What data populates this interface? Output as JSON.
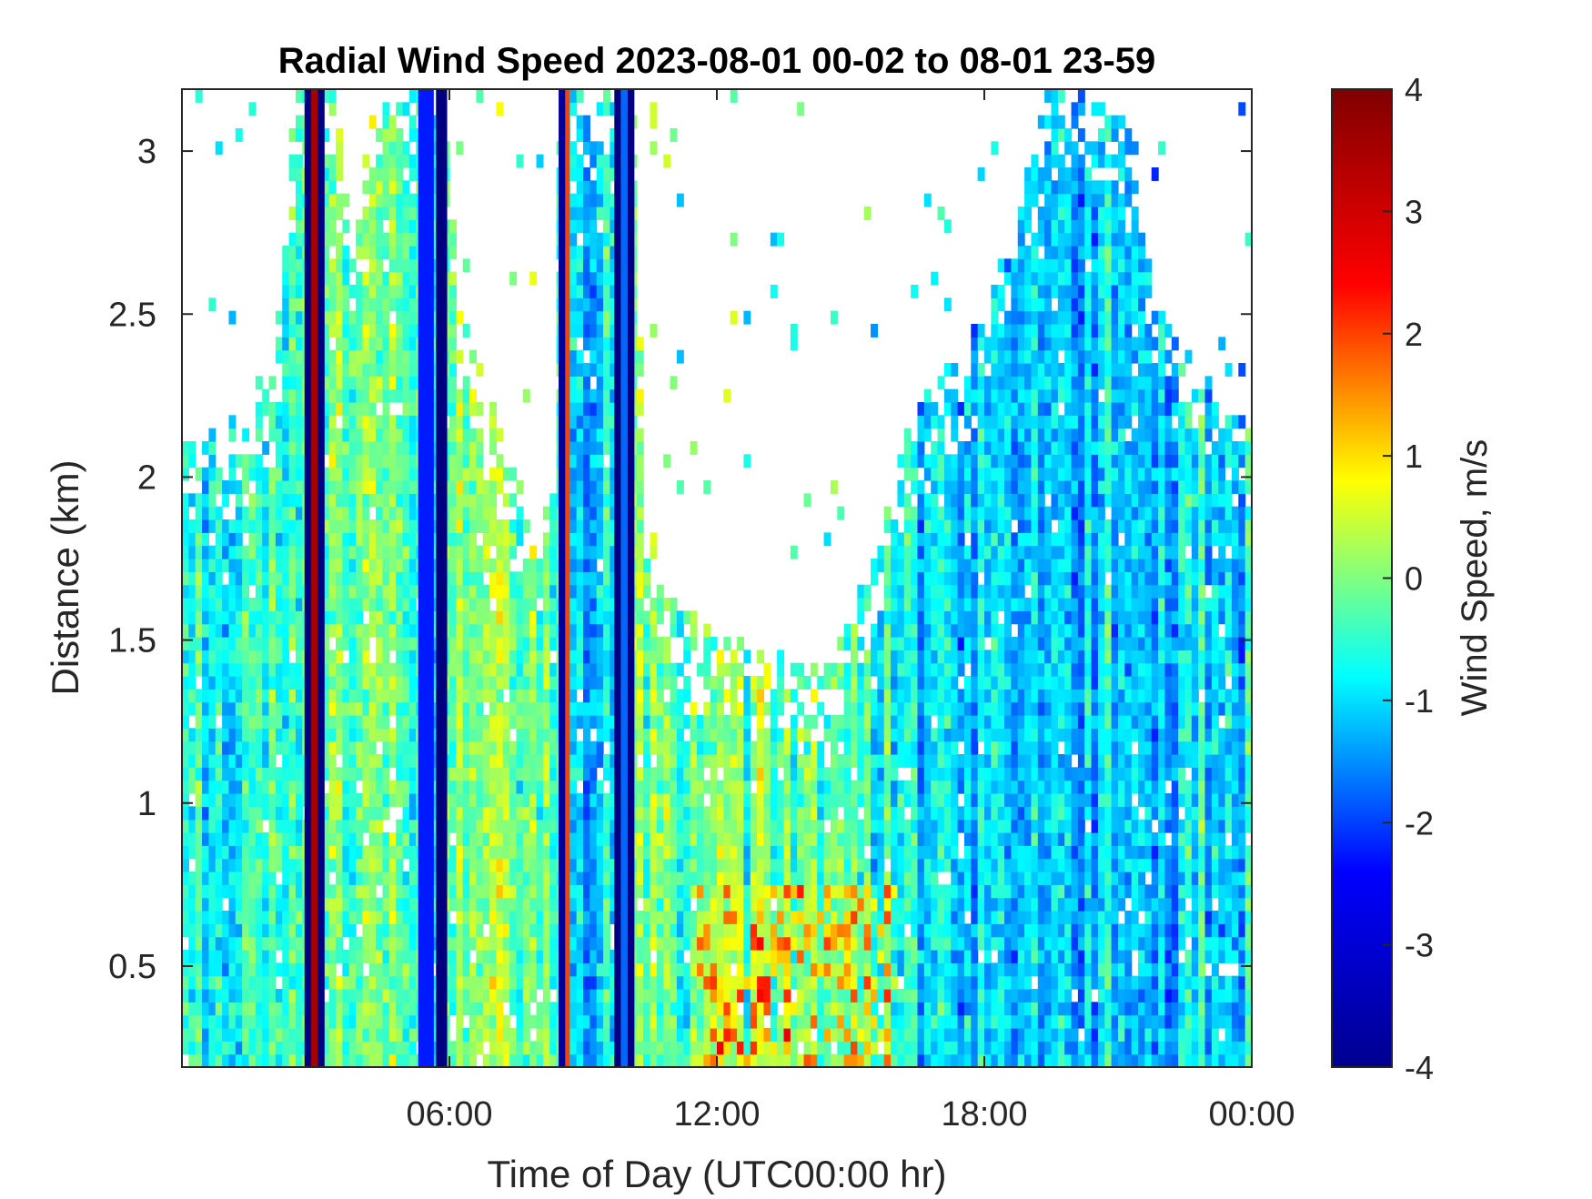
{
  "chart_data": {
    "type": "heatmap",
    "title": "Radial Wind Speed 2023-08-01 00-02 to 08-01 23-59",
    "xlabel": "Time of Day (UTC00:00 hr)",
    "ylabel": "Distance (km)",
    "colorbar_label": "Wind Speed, m/s",
    "colormap": "jet",
    "colormap_stops": [
      "#00008f",
      "#0000ff",
      "#00ffff",
      "#ffff00",
      "#ff0000",
      "#800000"
    ],
    "x_unit": "hours",
    "xlim": [
      0,
      24
    ],
    "ylim": [
      0.19,
      3.19
    ],
    "clim": [
      -4,
      4
    ],
    "x_ticks": [
      {
        "value": 6,
        "label": "06:00"
      },
      {
        "value": 12,
        "label": "12:00"
      },
      {
        "value": 18,
        "label": "18:00"
      },
      {
        "value": 24,
        "label": "00:00"
      }
    ],
    "y_ticks": [
      {
        "value": 0.5,
        "label": "0.5"
      },
      {
        "value": 1,
        "label": "1"
      },
      {
        "value": 1.5,
        "label": "1.5"
      },
      {
        "value": 2,
        "label": "2"
      },
      {
        "value": 2.5,
        "label": "2.5"
      },
      {
        "value": 3,
        "label": "3"
      }
    ],
    "colorbar_ticks": [
      {
        "value": 4,
        "label": "4"
      },
      {
        "value": 3,
        "label": "3"
      },
      {
        "value": 2,
        "label": "2"
      },
      {
        "value": 1,
        "label": "1"
      },
      {
        "value": 0,
        "label": "0"
      },
      {
        "value": -1,
        "label": "-1"
      },
      {
        "value": -2,
        "label": "-2"
      },
      {
        "value": -3,
        "label": "-3"
      },
      {
        "value": -4,
        "label": "-4"
      }
    ],
    "data_top_km": [
      {
        "t": 0.0,
        "top": 2.2
      },
      {
        "t": 1.0,
        "top": 2.1
      },
      {
        "t": 2.0,
        "top": 2.25
      },
      {
        "t": 2.6,
        "top": 3.19
      },
      {
        "t": 3.4,
        "top": 3.19
      },
      {
        "t": 3.8,
        "top": 2.7
      },
      {
        "t": 4.4,
        "top": 3.19
      },
      {
        "t": 5.9,
        "top": 3.19
      },
      {
        "t": 6.2,
        "top": 2.5
      },
      {
        "t": 7.5,
        "top": 2.0
      },
      {
        "t": 8.3,
        "top": 1.8
      },
      {
        "t": 8.5,
        "top": 3.19
      },
      {
        "t": 10.1,
        "top": 3.19
      },
      {
        "t": 10.4,
        "top": 1.9
      },
      {
        "t": 11.0,
        "top": 1.6
      },
      {
        "t": 12.0,
        "top": 1.5
      },
      {
        "t": 13.0,
        "top": 1.45
      },
      {
        "t": 14.5,
        "top": 1.4
      },
      {
        "t": 15.5,
        "top": 1.75
      },
      {
        "t": 16.5,
        "top": 2.2
      },
      {
        "t": 17.5,
        "top": 2.4
      },
      {
        "t": 18.5,
        "top": 2.7
      },
      {
        "t": 19.5,
        "top": 3.19
      },
      {
        "t": 21.0,
        "top": 3.19
      },
      {
        "t": 22.0,
        "top": 2.5
      },
      {
        "t": 23.0,
        "top": 2.3
      },
      {
        "t": 24.0,
        "top": 2.2
      }
    ],
    "vertical_bands": [
      {
        "start": 2.75,
        "end": 3.2,
        "value": -4
      },
      {
        "start": 2.9,
        "end": 3.05,
        "value": 3.7
      },
      {
        "start": 5.3,
        "end": 5.65,
        "value": -2.8
      },
      {
        "start": 5.7,
        "end": 5.95,
        "value": -4
      },
      {
        "start": 8.45,
        "end": 8.6,
        "value": -3.8
      },
      {
        "start": 8.6,
        "end": 8.7,
        "value": 2.5
      },
      {
        "start": 9.7,
        "end": 9.85,
        "value": -4
      },
      {
        "start": 9.85,
        "end": 10.0,
        "value": -2.2
      },
      {
        "start": 10.0,
        "end": 10.15,
        "value": -4
      }
    ],
    "regional_means": [
      {
        "start": 0.0,
        "end": 2.7,
        "value": -0.8
      },
      {
        "start": 3.2,
        "end": 5.3,
        "value": -0.2
      },
      {
        "start": 5.95,
        "end": 8.45,
        "value": -0.1
      },
      {
        "start": 8.7,
        "end": 9.7,
        "value": -1.2
      },
      {
        "start": 10.15,
        "end": 15.5,
        "value": -0.2
      },
      {
        "start": 15.5,
        "end": 24.0,
        "value": -1.1
      }
    ]
  }
}
